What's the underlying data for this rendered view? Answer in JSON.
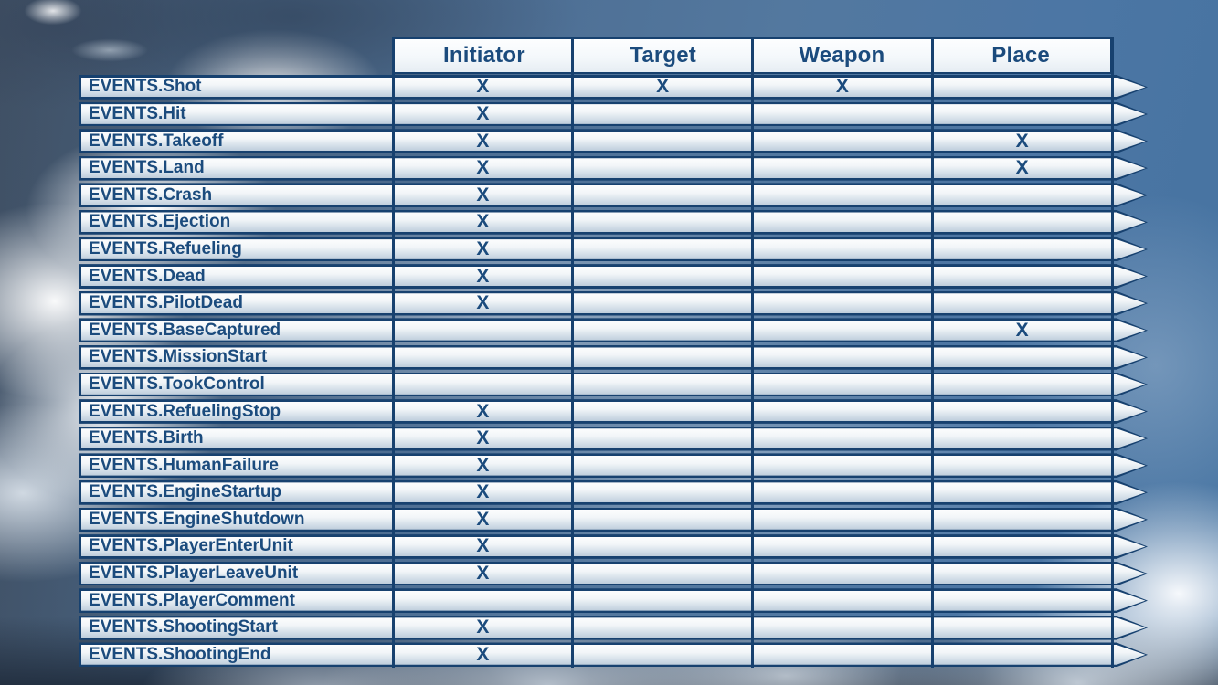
{
  "table": {
    "columns": [
      {
        "key": "initiator",
        "label": "Initiator"
      },
      {
        "key": "target",
        "label": "Target"
      },
      {
        "key": "weapon",
        "label": "Weapon"
      },
      {
        "key": "place",
        "label": "Place"
      }
    ],
    "mark": "X",
    "rows": [
      {
        "event": "EVENTS.Shot",
        "marks": [
          "initiator",
          "target",
          "weapon"
        ]
      },
      {
        "event": "EVENTS.Hit",
        "marks": [
          "initiator"
        ]
      },
      {
        "event": "EVENTS.Takeoff",
        "marks": [
          "initiator",
          "place"
        ]
      },
      {
        "event": "EVENTS.Land",
        "marks": [
          "initiator",
          "place"
        ]
      },
      {
        "event": "EVENTS.Crash",
        "marks": [
          "initiator"
        ]
      },
      {
        "event": "EVENTS.Ejection",
        "marks": [
          "initiator"
        ]
      },
      {
        "event": "EVENTS.Refueling",
        "marks": [
          "initiator"
        ]
      },
      {
        "event": "EVENTS.Dead",
        "marks": [
          "initiator"
        ]
      },
      {
        "event": "EVENTS.PilotDead",
        "marks": [
          "initiator"
        ]
      },
      {
        "event": "EVENTS.BaseCaptured",
        "marks": [
          "place"
        ]
      },
      {
        "event": "EVENTS.MissionStart",
        "marks": []
      },
      {
        "event": "EVENTS.TookControl",
        "marks": []
      },
      {
        "event": "EVENTS.RefuelingStop",
        "marks": [
          "initiator"
        ]
      },
      {
        "event": "EVENTS.Birth",
        "marks": [
          "initiator"
        ]
      },
      {
        "event": "EVENTS.HumanFailure",
        "marks": [
          "initiator"
        ]
      },
      {
        "event": "EVENTS.EngineStartup",
        "marks": [
          "initiator"
        ]
      },
      {
        "event": "EVENTS.EngineShutdown",
        "marks": [
          "initiator"
        ]
      },
      {
        "event": "EVENTS.PlayerEnterUnit",
        "marks": [
          "initiator"
        ]
      },
      {
        "event": "EVENTS.PlayerLeaveUnit",
        "marks": [
          "initiator"
        ]
      },
      {
        "event": "EVENTS.PlayerComment",
        "marks": []
      },
      {
        "event": "EVENTS.ShootingStart",
        "marks": [
          "initiator"
        ]
      },
      {
        "event": "EVENTS.ShootingEnd",
        "marks": [
          "initiator"
        ]
      }
    ]
  },
  "colors": {
    "accent_text": "#1b4b7d",
    "table_border": "#17416f"
  }
}
